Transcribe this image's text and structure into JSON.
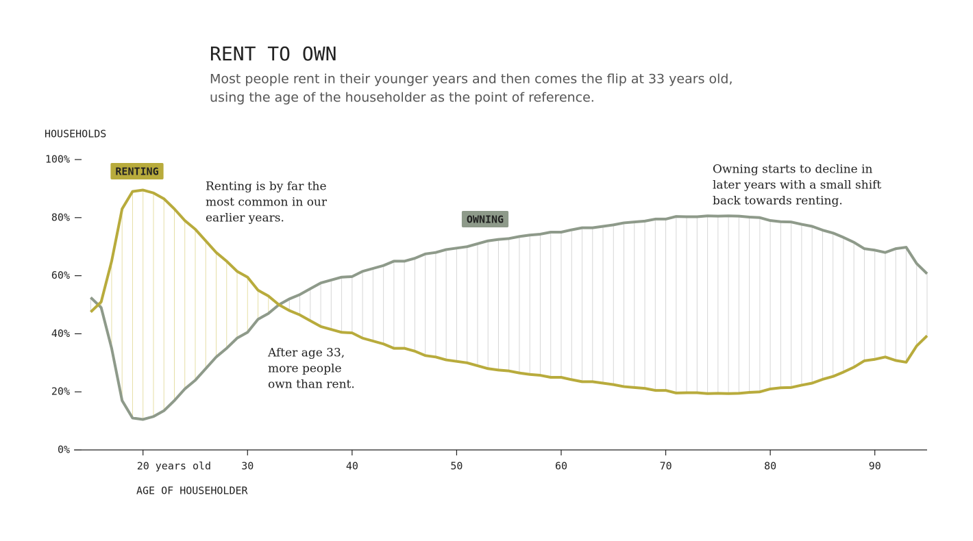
{
  "chart_data": {
    "type": "line",
    "title": "RENT TO OWN",
    "subtitle": [
      "Most people rent in their younger years and then comes the flip at 33 years old,",
      "using the age of the householder as the point of reference."
    ],
    "y_label": "HOUSEHOLDS",
    "x_label": "AGE OF HOUSEHOLDER",
    "x": [
      15,
      16,
      17,
      18,
      19,
      20,
      21,
      22,
      23,
      24,
      25,
      26,
      27,
      28,
      29,
      30,
      31,
      32,
      33,
      34,
      35,
      36,
      37,
      38,
      39,
      40,
      41,
      42,
      43,
      44,
      45,
      46,
      47,
      48,
      49,
      50,
      51,
      52,
      53,
      54,
      55,
      56,
      57,
      58,
      59,
      60,
      61,
      62,
      63,
      64,
      65,
      66,
      67,
      68,
      69,
      70,
      71,
      72,
      73,
      74,
      75,
      76,
      77,
      78,
      79,
      80,
      81,
      82,
      83,
      84,
      85,
      86,
      87,
      88,
      89,
      90,
      91,
      92,
      93,
      94,
      95
    ],
    "series": [
      {
        "name": "RENTING",
        "color": "#b8ab3c",
        "values": [
          47.5,
          51,
          65,
          83,
          89,
          89.5,
          88.5,
          86.5,
          83,
          79,
          76,
          72,
          68,
          65,
          61.5,
          59.5,
          55,
          53,
          50,
          48,
          46.5,
          44.5,
          42.5,
          41.5,
          40.5,
          40.3,
          38.5,
          37.5,
          36.5,
          35,
          35,
          34,
          32.5,
          32,
          31,
          30.5,
          30,
          29,
          28,
          27.5,
          27.2,
          26.5,
          26,
          25.7,
          25,
          25,
          24.2,
          23.5,
          23.5,
          23,
          22.5,
          21.8,
          21.5,
          21.2,
          20.5,
          20.5,
          19.6,
          19.7,
          19.7,
          19.4,
          19.5,
          19.4,
          19.5,
          19.8,
          20,
          21,
          21.4,
          21.5,
          22.3,
          23,
          24.3,
          25.3,
          26.8,
          28.5,
          30.7,
          31.2,
          32,
          30.8,
          30.2,
          35.8,
          39.3
        ]
      },
      {
        "name": "OWNING",
        "color": "#8e9a8a",
        "values": [
          52.5,
          49,
          35,
          17,
          11,
          10.5,
          11.5,
          13.5,
          17,
          21,
          24,
          28,
          32,
          35,
          38.5,
          40.5,
          45,
          47,
          50,
          52,
          53.5,
          55.5,
          57.5,
          58.5,
          59.5,
          59.7,
          61.5,
          62.5,
          63.5,
          65,
          65,
          66,
          67.5,
          68,
          69,
          69.5,
          70,
          71,
          72,
          72.5,
          72.8,
          73.5,
          74,
          74.3,
          75,
          75,
          75.8,
          76.5,
          76.5,
          77,
          77.5,
          78.2,
          78.5,
          78.8,
          79.5,
          79.5,
          80.4,
          80.3,
          80.3,
          80.6,
          80.5,
          80.6,
          80.5,
          80.2,
          80,
          79,
          78.6,
          78.5,
          77.7,
          77,
          75.7,
          74.7,
          73.2,
          71.5,
          69.3,
          68.8,
          68,
          69.3,
          69.8,
          64.2,
          60.7
        ]
      }
    ],
    "xlim": [
      13.4,
      95
    ],
    "ylim": [
      0,
      100
    ],
    "xticks": [
      {
        "value": 20,
        "label": "20 years old"
      },
      30,
      40,
      50,
      60,
      70,
      80,
      90
    ],
    "yticks": [
      {
        "value": 0,
        "label": "0%"
      },
      {
        "value": 20,
        "label": "20%"
      },
      {
        "value": 40,
        "label": "40%"
      },
      {
        "value": 60,
        "label": "60%"
      },
      {
        "value": 80,
        "label": "80%"
      },
      {
        "value": 100,
        "label": "100%"
      }
    ],
    "annotations": [
      {
        "lines": [
          "Renting is by far the",
          "most common in our",
          "earlier years."
        ]
      },
      {
        "lines": [
          "After age 33,",
          "more people",
          "own than rent."
        ]
      },
      {
        "lines": [
          "Owning starts to decline in",
          "later years with a small shift",
          "back towards renting."
        ]
      }
    ]
  }
}
